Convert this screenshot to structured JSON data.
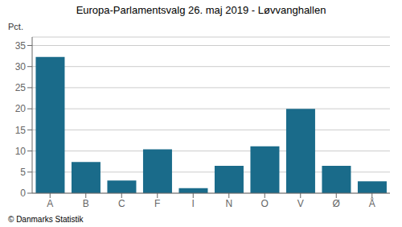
{
  "chart_data": {
    "type": "bar",
    "title": "Europa-Parlamentsvalg 26. maj 2019 - Løvvanghallen",
    "ylabel": "Pct.",
    "footer": "© Danmarks Statistik",
    "categories": [
      "A",
      "B",
      "C",
      "F",
      "I",
      "N",
      "O",
      "V",
      "Ø",
      "Å"
    ],
    "values": [
      32.3,
      7.4,
      3.0,
      10.4,
      1.2,
      6.5,
      11.1,
      20.0,
      6.5,
      2.8
    ],
    "color": "#1a6b8a",
    "ylim": [
      0,
      37
    ],
    "yticks": [
      0,
      5,
      10,
      15,
      20,
      25,
      30,
      35
    ],
    "grid": true
  }
}
